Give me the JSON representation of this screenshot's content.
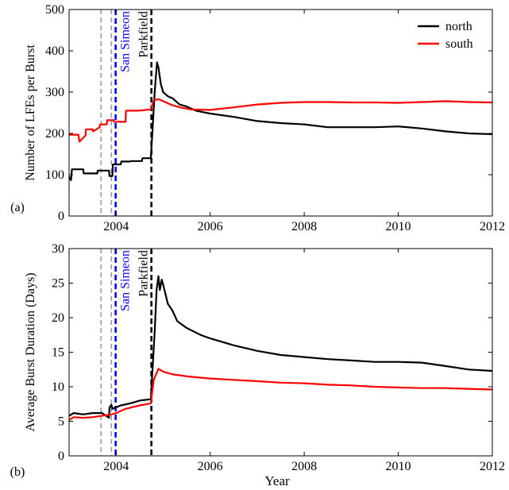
{
  "figure": {
    "xlabel": "Year",
    "shared_legend": [
      {
        "name": "north",
        "color": "#000000"
      },
      {
        "name": "south",
        "color": "#ff0000"
      }
    ]
  },
  "chart_data": [
    {
      "type": "line",
      "panel_label": "(a)",
      "ylabel": "Number of LFEs per Burst",
      "xlim": [
        2003.0,
        2012.0
      ],
      "ylim": [
        0,
        500
      ],
      "x_ticks": [
        2004,
        2006,
        2008,
        2010,
        2012
      ],
      "y_ticks": [
        0,
        100,
        200,
        300,
        400,
        500
      ],
      "grid": false,
      "legend_position": "top-right",
      "events": [
        {
          "x": 2003.68,
          "label": "",
          "color": "#999999"
        },
        {
          "x": 2003.9,
          "label": "",
          "color": "#999999"
        },
        {
          "x": 2003.99,
          "label": "San Simeon",
          "color": "#0000ff"
        },
        {
          "x": 2004.75,
          "label": "Parkfield",
          "color": "#000000"
        }
      ],
      "series": [
        {
          "name": "north",
          "color": "#000000",
          "x": [
            2003.0,
            2003.04,
            2003.06,
            2003.3,
            2003.31,
            2003.6,
            2003.61,
            2003.85,
            2003.86,
            2003.92,
            2003.93,
            2004.1,
            2004.11,
            2004.3,
            2004.31,
            2004.55,
            2004.56,
            2004.74,
            2004.77,
            2004.82,
            2004.87,
            2004.9,
            2004.95,
            2005.0,
            2005.1,
            2005.2,
            2005.35,
            2005.5,
            2005.7,
            2006.0,
            2006.5,
            2007.0,
            2007.5,
            2008.0,
            2008.5,
            2009.0,
            2009.5,
            2010.0,
            2010.5,
            2011.0,
            2011.5,
            2012.0
          ],
          "y": [
            95,
            87,
            113,
            113,
            103,
            103,
            110,
            110,
            97,
            97,
            125,
            125,
            132,
            132,
            133,
            133,
            140,
            140,
            200,
            300,
            372,
            360,
            320,
            300,
            290,
            285,
            270,
            265,
            255,
            248,
            240,
            230,
            225,
            222,
            215,
            215,
            215,
            217,
            212,
            205,
            200,
            198
          ]
        },
        {
          "name": "south",
          "color": "#ff0000",
          "x": [
            2003.0,
            2003.2,
            2003.22,
            2003.35,
            2003.36,
            2003.5,
            2003.51,
            2003.65,
            2003.66,
            2003.8,
            2003.81,
            2003.95,
            2003.96,
            2004.2,
            2004.21,
            2004.45,
            2004.46,
            2004.74,
            2004.8,
            2004.9,
            2005.0,
            2005.2,
            2005.4,
            2005.6,
            2006.0,
            2006.5,
            2007.0,
            2007.5,
            2008.0,
            2008.5,
            2009.0,
            2009.5,
            2010.0,
            2010.5,
            2011.0,
            2011.5,
            2012.0
          ],
          "y": [
            197,
            197,
            180,
            195,
            210,
            210,
            205,
            215,
            222,
            222,
            232,
            232,
            228,
            228,
            255,
            255,
            255,
            258,
            280,
            283,
            278,
            268,
            262,
            258,
            257,
            263,
            270,
            274,
            276,
            276,
            275,
            275,
            274,
            276,
            278,
            276,
            275
          ]
        }
      ]
    },
    {
      "type": "line",
      "panel_label": "(b)",
      "ylabel": "Average Burst Duration (Days)",
      "xlim": [
        2003.0,
        2012.0
      ],
      "ylim": [
        0,
        30
      ],
      "x_ticks": [
        2004,
        2006,
        2008,
        2010,
        2012
      ],
      "y_ticks": [
        0,
        5,
        10,
        15,
        20,
        25,
        30
      ],
      "grid": false,
      "events": [
        {
          "x": 2003.68,
          "label": "",
          "color": "#999999"
        },
        {
          "x": 2003.9,
          "label": "",
          "color": "#999999"
        },
        {
          "x": 2003.99,
          "label": "San Simeon",
          "color": "#0000ff"
        },
        {
          "x": 2004.75,
          "label": "Parkfield",
          "color": "#000000"
        }
      ],
      "series": [
        {
          "name": "north",
          "color": "#000000",
          "x": [
            2003.0,
            2003.05,
            2003.1,
            2003.3,
            2003.5,
            2003.7,
            2003.85,
            2003.86,
            2003.9,
            2003.92,
            2004.1,
            2004.3,
            2004.5,
            2004.74,
            2004.77,
            2004.82,
            2004.86,
            2004.9,
            2004.93,
            2004.97,
            2005.0,
            2005.1,
            2005.2,
            2005.3,
            2005.5,
            2005.8,
            2006.0,
            2006.5,
            2007.0,
            2007.5,
            2008.0,
            2008.5,
            2009.0,
            2009.5,
            2010.0,
            2010.5,
            2011.0,
            2011.5,
            2012.0
          ],
          "y": [
            5.8,
            6.0,
            6.2,
            6.0,
            6.2,
            6.2,
            5.5,
            7.0,
            7.4,
            6.8,
            7.3,
            7.6,
            8.0,
            8.2,
            12,
            18,
            24,
            26,
            24,
            25.5,
            24.8,
            22,
            21,
            19.5,
            18.5,
            17.5,
            17,
            16,
            15.2,
            14.6,
            14.3,
            14.0,
            13.8,
            13.6,
            13.6,
            13.5,
            13.0,
            12.5,
            12.3
          ]
        },
        {
          "name": "south",
          "color": "#ff0000",
          "x": [
            2003.0,
            2003.1,
            2003.3,
            2003.5,
            2003.7,
            2003.9,
            2004.0,
            2004.2,
            2004.5,
            2004.74,
            2004.8,
            2004.9,
            2005.0,
            2005.2,
            2005.5,
            2006.0,
            2006.5,
            2007.0,
            2007.5,
            2008.0,
            2008.5,
            2009.0,
            2009.5,
            2010.0,
            2010.5,
            2011.0,
            2011.5,
            2012.0
          ],
          "y": [
            5.2,
            5.6,
            5.5,
            5.6,
            5.8,
            6.0,
            6.2,
            6.8,
            7.3,
            7.6,
            11.0,
            12.6,
            12.2,
            11.8,
            11.5,
            11.2,
            11.0,
            10.8,
            10.6,
            10.5,
            10.3,
            10.2,
            10.0,
            9.9,
            9.8,
            9.8,
            9.7,
            9.6
          ]
        }
      ]
    }
  ]
}
